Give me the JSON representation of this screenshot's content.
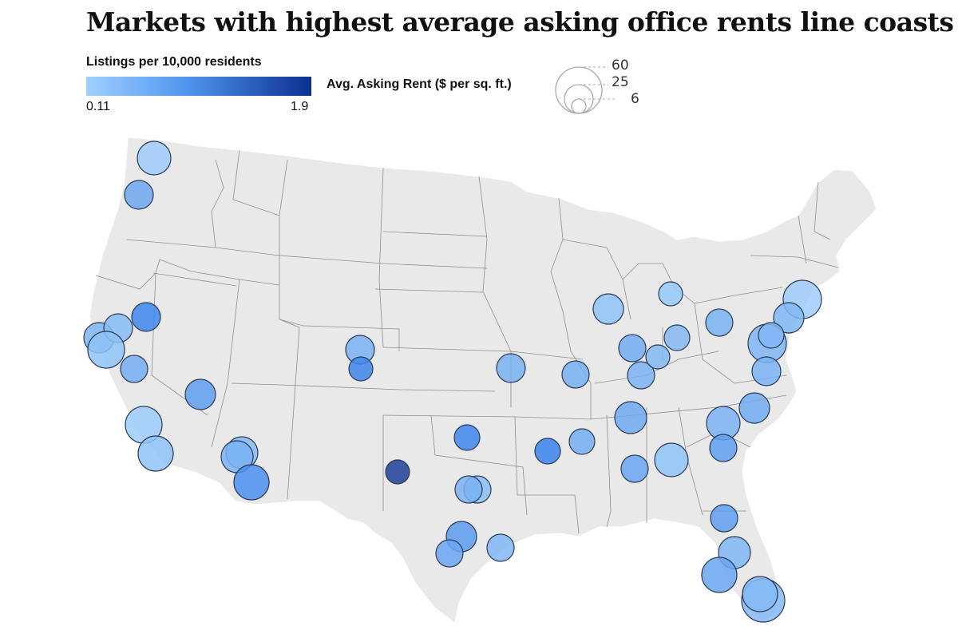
{
  "title": "Markets with highest average asking office rents line coasts",
  "color_legend": {
    "title": "Listings per 10,000 residents",
    "min_label": "0.11",
    "max_label": "1.9",
    "colors": [
      "#9fd0ff",
      "#4f95ef",
      "#0b2f8f"
    ]
  },
  "size_legend": {
    "title": "Avg. Asking Rent ($ per sq. ft.)",
    "labels": [
      "60",
      "25",
      "6"
    ]
  },
  "chart_data": {
    "type": "scatter",
    "marks": [
      {
        "name": "seattle",
        "rent": 60,
        "listings": 0.25,
        "color": "#9fcdfb"
      },
      {
        "name": "portland",
        "rent": 25,
        "listings": 0.45,
        "color": "#6ea8f0"
      },
      {
        "name": "sacramento",
        "rent": 25,
        "listings": 1.2,
        "color": "#3d86ee"
      },
      {
        "name": "sf-bay-north",
        "rent": 50,
        "listings": 0.4,
        "color": "#7cb6f3"
      },
      {
        "name": "oakland",
        "rent": 40,
        "listings": 0.35,
        "color": "#86bdf6"
      },
      {
        "name": "san-jose",
        "rent": 60,
        "listings": 0.3,
        "color": "#8ec3f7"
      },
      {
        "name": "fresno",
        "rent": 22,
        "listings": 0.45,
        "color": "#74aef2"
      },
      {
        "name": "los-angeles",
        "rent": 55,
        "listings": 0.3,
        "color": "#9ccdfc"
      },
      {
        "name": "san-diego",
        "rent": 50,
        "listings": 0.35,
        "color": "#8ec3f7"
      },
      {
        "name": "las-vegas",
        "rent": 30,
        "listings": 0.7,
        "color": "#5e9ff0"
      },
      {
        "name": "phoenix-a",
        "rent": 40,
        "listings": 0.4,
        "color": "#84baf4"
      },
      {
        "name": "phoenix-b",
        "rent": 38,
        "listings": 0.45,
        "color": "#7ab3f3"
      },
      {
        "name": "tucson",
        "rent": 45,
        "listings": 0.9,
        "color": "#4b8ff0"
      },
      {
        "name": "denver",
        "rent": 30,
        "listings": 0.45,
        "color": "#79b2f2"
      },
      {
        "name": "colorado-springs",
        "rent": 18,
        "listings": 1.1,
        "color": "#3f84ea"
      },
      {
        "name": "albuquerque",
        "rent": 18,
        "listings": 1.9,
        "color": "#1e3f96"
      },
      {
        "name": "kansas-city",
        "rent": 28,
        "listings": 0.45,
        "color": "#77b0f2"
      },
      {
        "name": "oklahoma-city",
        "rent": 22,
        "listings": 1.0,
        "color": "#3f86ec"
      },
      {
        "name": "dallas",
        "rent": 30,
        "listings": 0.35,
        "color": "#88bff6"
      },
      {
        "name": "fort-worth",
        "rent": 25,
        "listings": 0.45,
        "color": "#79b2f2"
      },
      {
        "name": "austin",
        "rent": 38,
        "listings": 0.8,
        "color": "#5b9bef"
      },
      {
        "name": "san-antonio",
        "rent": 28,
        "listings": 0.7,
        "color": "#6aa6f1"
      },
      {
        "name": "houston",
        "rent": 28,
        "listings": 0.45,
        "color": "#80b7f4"
      },
      {
        "name": "little-rock",
        "rent": 20,
        "listings": 1.2,
        "color": "#3a84ed"
      },
      {
        "name": "memphis",
        "rent": 22,
        "listings": 0.45,
        "color": "#74aef2"
      },
      {
        "name": "st-louis",
        "rent": 22,
        "listings": 0.5,
        "color": "#76b0f2"
      },
      {
        "name": "chicago",
        "rent": 38,
        "listings": 0.35,
        "color": "#8ec3f7"
      },
      {
        "name": "indianapolis",
        "rent": 28,
        "listings": 0.55,
        "color": "#71acf2"
      },
      {
        "name": "louisville",
        "rent": 25,
        "listings": 0.5,
        "color": "#7ab3f3"
      },
      {
        "name": "lexington",
        "rent": 20,
        "listings": 0.45,
        "color": "#82b9f5"
      },
      {
        "name": "nashville",
        "rent": 35,
        "listings": 0.5,
        "color": "#6ea9f1"
      },
      {
        "name": "birmingham",
        "rent": 22,
        "listings": 0.6,
        "color": "#6aa6f1"
      },
      {
        "name": "atlanta",
        "rent": 42,
        "listings": 0.35,
        "color": "#8ec3f7"
      },
      {
        "name": "detroit",
        "rent": 20,
        "listings": 0.3,
        "color": "#97c9f9"
      },
      {
        "name": "cleveland",
        "rent": 22,
        "listings": 0.5,
        "color": "#78b1f3"
      },
      {
        "name": "columbus",
        "rent": 22,
        "listings": 0.4,
        "color": "#82b9f5"
      },
      {
        "name": "pittsburgh",
        "rent": 25,
        "listings": 0.5,
        "color": "#78b1f3"
      },
      {
        "name": "new-york",
        "rent": 60,
        "listings": 0.25,
        "color": "#9fcdfb"
      },
      {
        "name": "philadelphia",
        "rent": 35,
        "listings": 0.45,
        "color": "#80b7f4"
      },
      {
        "name": "dc-outer",
        "rent": 55,
        "listings": 0.45,
        "color": "#7fb6f4"
      },
      {
        "name": "dc-inner",
        "rent": 25,
        "listings": 0.45,
        "color": "#80b7f4"
      },
      {
        "name": "richmond",
        "rent": 30,
        "listings": 0.45,
        "color": "#7ab3f3"
      },
      {
        "name": "raleigh",
        "rent": 35,
        "listings": 0.5,
        "color": "#71acf2"
      },
      {
        "name": "charlotte",
        "rent": 40,
        "listings": 0.45,
        "color": "#7ab3f3"
      },
      {
        "name": "columbia-sc",
        "rent": 28,
        "listings": 0.6,
        "color": "#5f9ff0"
      },
      {
        "name": "jacksonville",
        "rent": 25,
        "listings": 0.65,
        "color": "#5f9ff0"
      },
      {
        "name": "orlando",
        "rent": 35,
        "listings": 0.45,
        "color": "#80b7f4"
      },
      {
        "name": "tampa",
        "rent": 45,
        "listings": 0.55,
        "color": "#6aa6f1"
      },
      {
        "name": "miami-a",
        "rent": 60,
        "listings": 0.4,
        "color": "#84baf4"
      },
      {
        "name": "miami-b",
        "rent": 50,
        "listings": 0.4,
        "color": "#84baf4"
      }
    ]
  }
}
